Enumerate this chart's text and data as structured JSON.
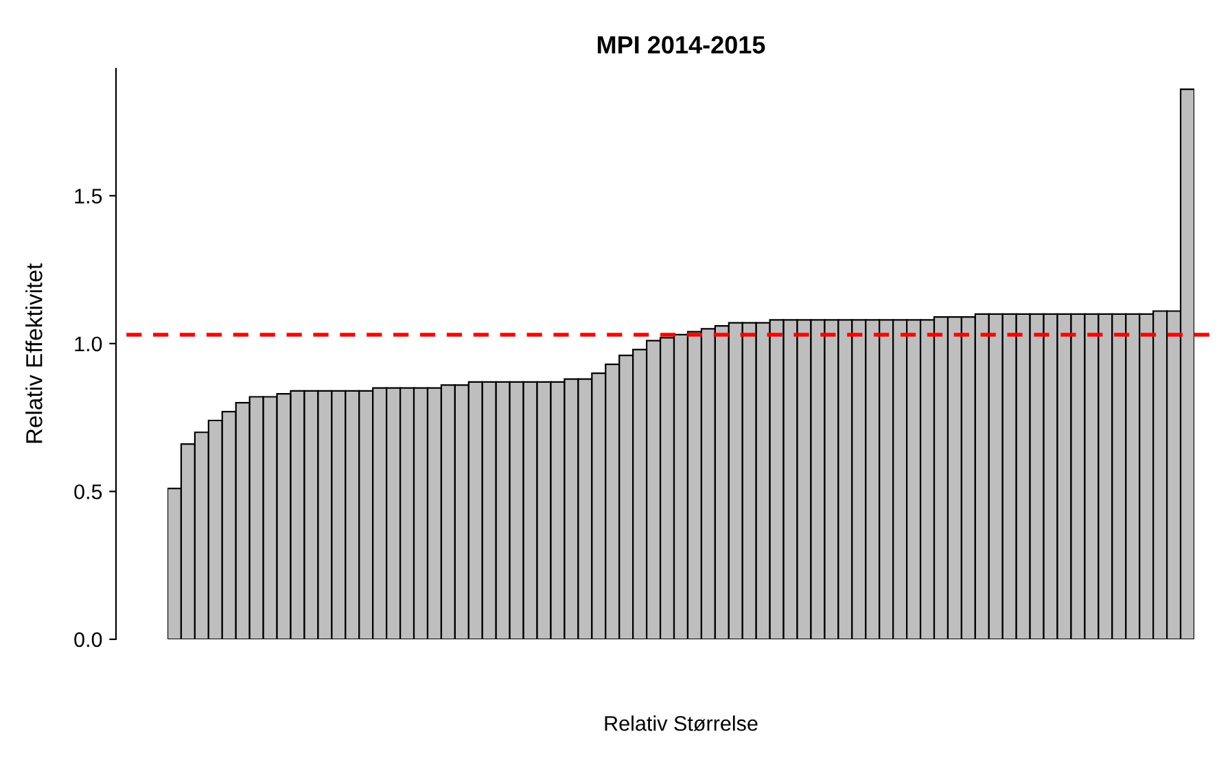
{
  "chart_data": {
    "type": "bar",
    "title": "MPI 2014-2015",
    "xlabel": "Relativ Størrelse",
    "ylabel": "Relativ Effektivitet",
    "categories": [
      null,
      null,
      null,
      null,
      null,
      null,
      null,
      null,
      null,
      null,
      null,
      null,
      null,
      null,
      null,
      null,
      null,
      null,
      null,
      null,
      null,
      null,
      null,
      null,
      null,
      null,
      null,
      null,
      null,
      null,
      null,
      null,
      null,
      null,
      null,
      null,
      null,
      null,
      null,
      null,
      null,
      null,
      null,
      null,
      null,
      null,
      null,
      null,
      null,
      null,
      null,
      null,
      null,
      null,
      null,
      null,
      null,
      null,
      null,
      null,
      null,
      null,
      null,
      null,
      null,
      null,
      null,
      null,
      null,
      null,
      null,
      null,
      null,
      null,
      null
    ],
    "values": [
      0.51,
      0.66,
      0.7,
      0.74,
      0.77,
      0.8,
      0.82,
      0.82,
      0.83,
      0.84,
      0.84,
      0.84,
      0.84,
      0.84,
      0.84,
      0.85,
      0.85,
      0.85,
      0.85,
      0.85,
      0.86,
      0.86,
      0.87,
      0.87,
      0.87,
      0.87,
      0.87,
      0.87,
      0.87,
      0.88,
      0.88,
      0.9,
      0.93,
      0.96,
      0.98,
      1.01,
      1.02,
      1.03,
      1.04,
      1.05,
      1.06,
      1.07,
      1.07,
      1.07,
      1.08,
      1.08,
      1.08,
      1.08,
      1.08,
      1.08,
      1.08,
      1.08,
      1.08,
      1.08,
      1.08,
      1.08,
      1.09,
      1.09,
      1.09,
      1.1,
      1.1,
      1.1,
      1.1,
      1.1,
      1.1,
      1.1,
      1.1,
      1.1,
      1.1,
      1.1,
      1.1,
      1.1,
      1.11,
      1.11,
      1.86
    ],
    "color": "#bebebe",
    "ylim": [
      0,
      1.93
    ],
    "yticks": [
      {
        "value": 0,
        "label": "0.0"
      },
      {
        "value": 0.5,
        "label": "0.5"
      },
      {
        "value": 1,
        "label": "1.0"
      },
      {
        "value": 1.5,
        "label": "1.5"
      }
    ],
    "tick_labels": "y",
    "grid": false,
    "ref_lines": [
      {
        "axis": "y",
        "value": 1.03,
        "label": null,
        "color": "#ff0000",
        "line_style": "dashed"
      }
    ]
  }
}
